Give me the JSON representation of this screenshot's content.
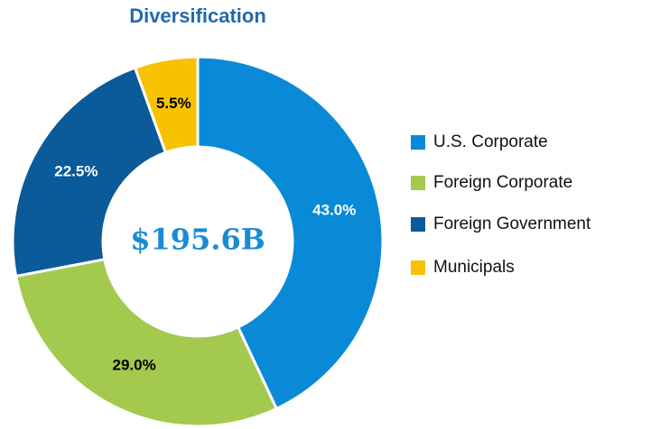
{
  "chart_data": {
    "type": "donut",
    "title": "Diversification",
    "center_label": "$195.6B",
    "categories": [
      "U.S. Corporate",
      "Foreign Corporate",
      "Foreign Government",
      "Municipals"
    ],
    "values": [
      43.0,
      29.0,
      22.5,
      5.5
    ],
    "value_labels": [
      "43.0%",
      "29.0%",
      "22.5%",
      "5.5%"
    ],
    "colors": [
      "#0a8ad6",
      "#a3c94e",
      "#0b5a99",
      "#f7c300"
    ],
    "legend": "right"
  }
}
